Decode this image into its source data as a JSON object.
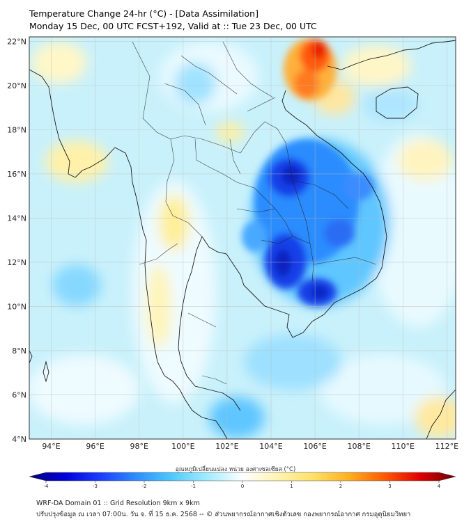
{
  "header": {
    "title_line1": "Temperature Change 24-hr (°C) - [Data Assimilation]",
    "title_line2": "Monday 15 Dec, 00 UTC FCST+192, Valid at :: Tue 23 Dec, 00 UTC"
  },
  "map": {
    "lat_labels": [
      "22°N",
      "20°N",
      "18°N",
      "16°N",
      "14°N",
      "12°N",
      "10°N",
      "8°N",
      "6°N",
      "4°N"
    ],
    "lon_labels": [
      "94°E",
      "96°E",
      "98°E",
      "100°E",
      "102°E",
      "104°E",
      "106°E",
      "108°E",
      "110°E",
      "112°E"
    ],
    "lat_range": [
      4,
      22.2
    ],
    "lon_range": [
      93,
      112.4
    ],
    "grid": true,
    "features": [
      {
        "type": "warm",
        "lon": 106.0,
        "lat": 20.5,
        "value": 3.0
      },
      {
        "type": "warm",
        "lon": 106.2,
        "lat": 21.6,
        "value": 3.5
      },
      {
        "type": "cold",
        "lon": 104.8,
        "lat": 15.9,
        "value": -2.4
      },
      {
        "type": "cold",
        "lon": 104.4,
        "lat": 12.0,
        "value": -2.3
      },
      {
        "type": "cold",
        "lon": 106.0,
        "lat": 10.6,
        "value": -2.5
      },
      {
        "type": "cold",
        "lon": 107.0,
        "lat": 13.4,
        "value": -1.8
      }
    ]
  },
  "colorbar": {
    "title": "อุณหภูมิเปลี่ยนแปลง หน่วย องศาเซลเซียส (°C)",
    "ticks": [
      "-4",
      "-3",
      "-2",
      "-1",
      "0",
      "1",
      "2",
      "3",
      "4"
    ],
    "range": [
      -4,
      4
    ],
    "colors": [
      "#00007a",
      "#0000d8",
      "#1a3cff",
      "#2e8cff",
      "#4ec8ff",
      "#a0ecff",
      "#ffffff",
      "#fff3b0",
      "#ffe066",
      "#ffb020",
      "#ff5a00",
      "#e00000",
      "#6a0000"
    ]
  },
  "footer": {
    "line1": "WRF-DA Domain 01 :: Grid Resolution 9km x 9km",
    "line2": "ปรับปรุงข้อมูล ณ เวลา 07:00น. วัน จ. ที่ 15 ธ.ค. 2568 -- © ส่วนพยากรณ์อากาศเชิงตัวเลข กองพยากรณ์อากาศ กรมอุตุนิยมวิทยา"
  }
}
